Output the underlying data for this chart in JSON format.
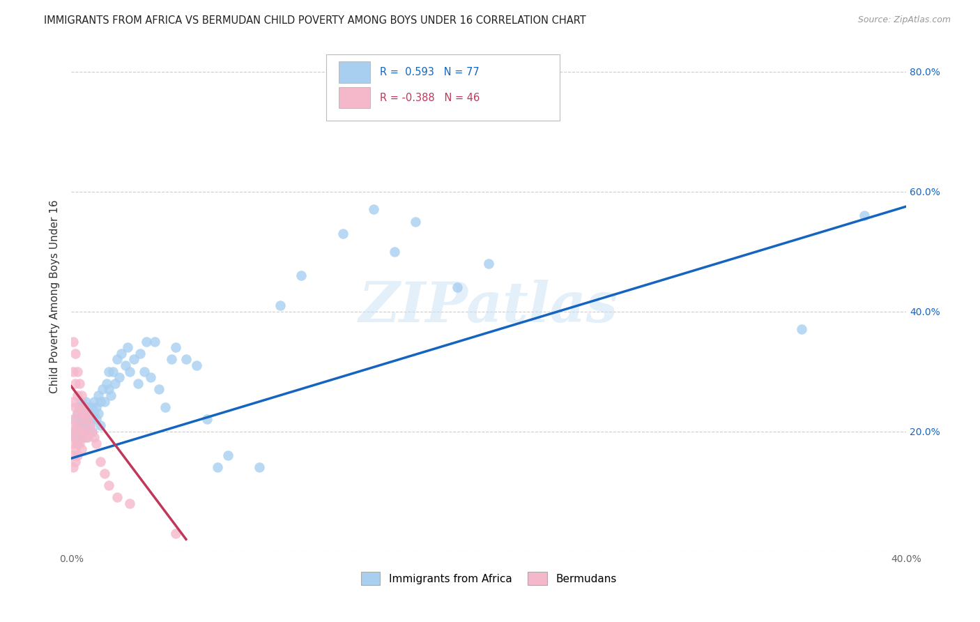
{
  "title": "IMMIGRANTS FROM AFRICA VS BERMUDAN CHILD POVERTY AMONG BOYS UNDER 16 CORRELATION CHART",
  "source": "Source: ZipAtlas.com",
  "ylabel": "Child Poverty Among Boys Under 16",
  "xlim": [
    0.0,
    0.4
  ],
  "ylim": [
    0.0,
    0.85
  ],
  "ytick_vals": [
    0.0,
    0.2,
    0.4,
    0.6,
    0.8
  ],
  "ytick_labels_right": [
    "",
    "20.0%",
    "40.0%",
    "60.0%",
    "80.0%"
  ],
  "xtick_vals": [
    0.0,
    0.05,
    0.1,
    0.15,
    0.2,
    0.25,
    0.3,
    0.35,
    0.4
  ],
  "xtick_labels": [
    "0.0%",
    "",
    "",
    "",
    "",
    "",
    "",
    "",
    "40.0%"
  ],
  "blue_color": "#a8cff0",
  "pink_color": "#f5b8cb",
  "blue_line_color": "#1565c0",
  "pink_line_color": "#c0375a",
  "watermark": "ZIPatlas",
  "blue_R": 0.593,
  "blue_N": 77,
  "pink_R": -0.388,
  "pink_N": 46,
  "blue_x": [
    0.001,
    0.002,
    0.002,
    0.003,
    0.003,
    0.003,
    0.004,
    0.004,
    0.004,
    0.005,
    0.005,
    0.005,
    0.005,
    0.006,
    0.006,
    0.006,
    0.007,
    0.007,
    0.007,
    0.007,
    0.008,
    0.008,
    0.008,
    0.009,
    0.009,
    0.01,
    0.01,
    0.01,
    0.011,
    0.011,
    0.012,
    0.012,
    0.013,
    0.013,
    0.014,
    0.014,
    0.015,
    0.016,
    0.017,
    0.018,
    0.018,
    0.019,
    0.02,
    0.021,
    0.022,
    0.023,
    0.024,
    0.026,
    0.027,
    0.028,
    0.03,
    0.032,
    0.033,
    0.035,
    0.036,
    0.038,
    0.04,
    0.042,
    0.045,
    0.048,
    0.05,
    0.055,
    0.06,
    0.065,
    0.07,
    0.075,
    0.09,
    0.1,
    0.11,
    0.13,
    0.145,
    0.155,
    0.165,
    0.185,
    0.2,
    0.35,
    0.38
  ],
  "blue_y": [
    0.2,
    0.22,
    0.19,
    0.21,
    0.23,
    0.18,
    0.22,
    0.2,
    0.24,
    0.21,
    0.19,
    0.23,
    0.25,
    0.22,
    0.2,
    0.24,
    0.21,
    0.23,
    0.25,
    0.19,
    0.22,
    0.24,
    0.2,
    0.23,
    0.21,
    0.22,
    0.24,
    0.2,
    0.23,
    0.25,
    0.24,
    0.22,
    0.26,
    0.23,
    0.25,
    0.21,
    0.27,
    0.25,
    0.28,
    0.27,
    0.3,
    0.26,
    0.3,
    0.28,
    0.32,
    0.29,
    0.33,
    0.31,
    0.34,
    0.3,
    0.32,
    0.28,
    0.33,
    0.3,
    0.35,
    0.29,
    0.35,
    0.27,
    0.24,
    0.32,
    0.34,
    0.32,
    0.31,
    0.22,
    0.14,
    0.16,
    0.14,
    0.41,
    0.46,
    0.53,
    0.57,
    0.5,
    0.55,
    0.44,
    0.48,
    0.37,
    0.56
  ],
  "pink_x": [
    0.001,
    0.001,
    0.001,
    0.001,
    0.001,
    0.001,
    0.001,
    0.001,
    0.002,
    0.002,
    0.002,
    0.002,
    0.002,
    0.002,
    0.002,
    0.003,
    0.003,
    0.003,
    0.003,
    0.003,
    0.003,
    0.004,
    0.004,
    0.004,
    0.004,
    0.005,
    0.005,
    0.005,
    0.005,
    0.006,
    0.006,
    0.006,
    0.007,
    0.007,
    0.008,
    0.008,
    0.009,
    0.01,
    0.011,
    0.012,
    0.014,
    0.016,
    0.018,
    0.022,
    0.028,
    0.05
  ],
  "pink_y": [
    0.35,
    0.3,
    0.25,
    0.22,
    0.2,
    0.18,
    0.16,
    0.14,
    0.33,
    0.28,
    0.24,
    0.21,
    0.19,
    0.17,
    0.15,
    0.3,
    0.26,
    0.23,
    0.2,
    0.18,
    0.16,
    0.28,
    0.24,
    0.21,
    0.18,
    0.26,
    0.23,
    0.2,
    0.17,
    0.24,
    0.22,
    0.19,
    0.23,
    0.2,
    0.22,
    0.19,
    0.21,
    0.2,
    0.19,
    0.18,
    0.15,
    0.13,
    0.11,
    0.09,
    0.08,
    0.03
  ],
  "blue_line_x": [
    0.0,
    0.4
  ],
  "blue_line_y": [
    0.155,
    0.575
  ],
  "pink_line_x": [
    0.0,
    0.055
  ],
  "pink_line_y": [
    0.275,
    0.02
  ]
}
